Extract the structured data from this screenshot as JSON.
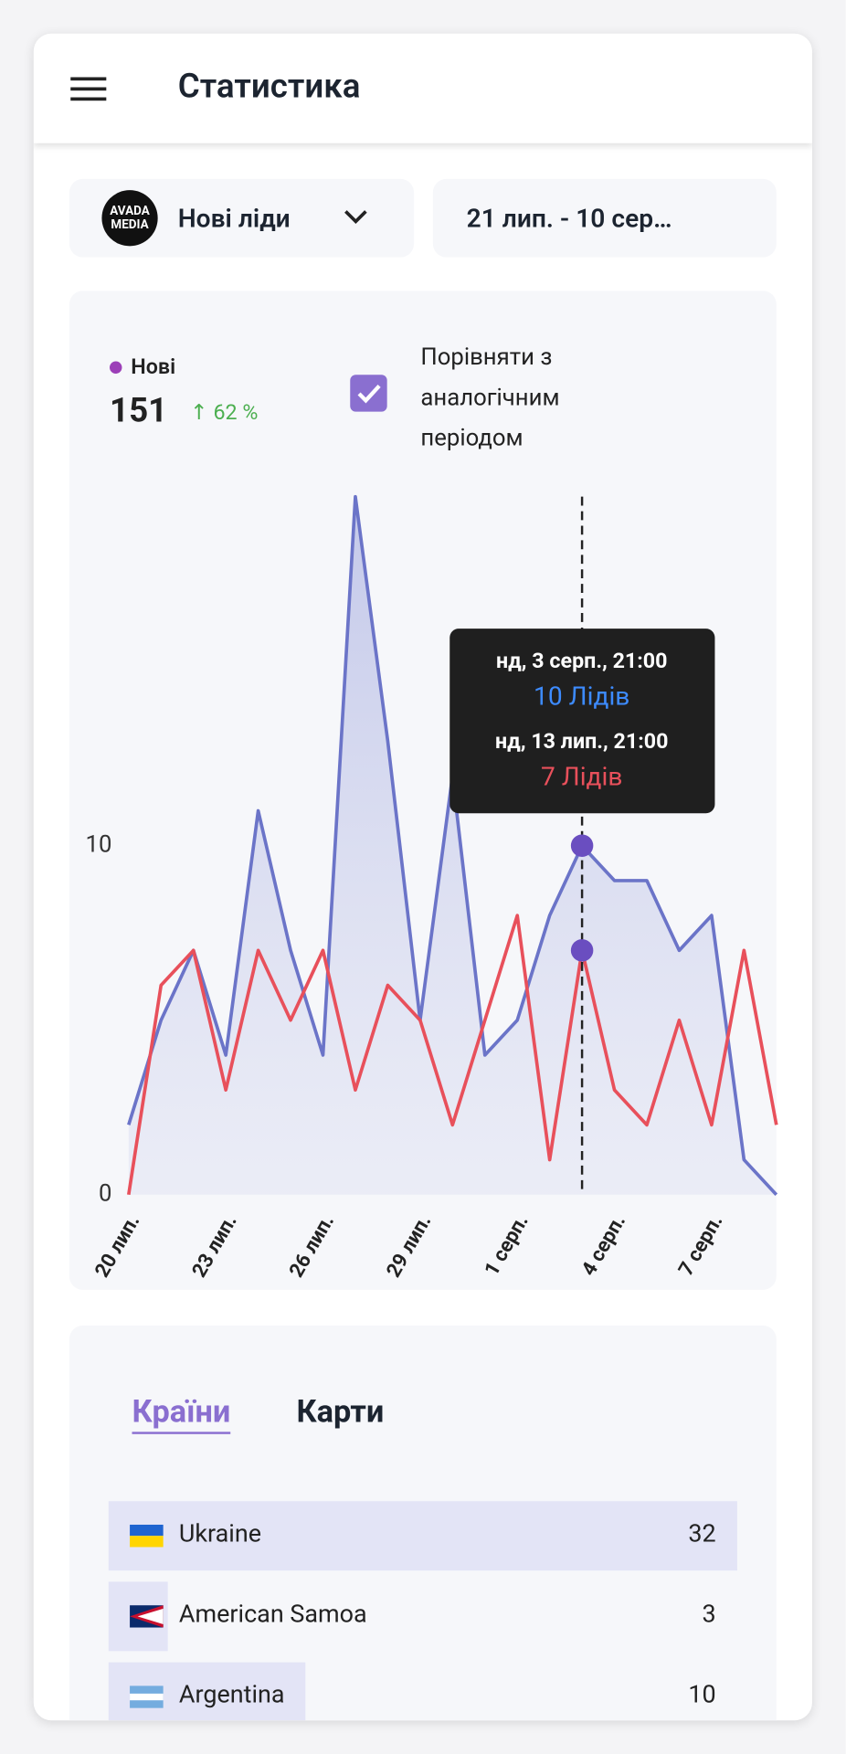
{
  "header": {
    "title": "Статистика"
  },
  "filters": {
    "logo": [
      "AVADA",
      "MEDIA"
    ],
    "source": "Нові ліди",
    "period": "21 лип. - 10 сер…"
  },
  "summary": {
    "total": 151,
    "change": "62 %",
    "compare": "Порівняти з аналогічним періодом"
  },
  "chart_data": {
    "type": "line",
    "categories": [
      "20 лип.",
      null,
      null,
      "23 лип.",
      null,
      null,
      "26 лип.",
      null,
      null,
      "29 лип.",
      null,
      null,
      "1 серп.",
      null,
      null,
      "4 серп.",
      null,
      null,
      "7 серп.",
      null,
      null
    ],
    "series": [
      {
        "name": "Нові",
        "color": "#6b74c8",
        "values": [
          2,
          5,
          7,
          4,
          11,
          7,
          4,
          20,
          13,
          5,
          12,
          4,
          5,
          8,
          10,
          9,
          9,
          7,
          8,
          1,
          0
        ]
      },
      {
        "color": "#e8505b",
        "values": [
          0,
          6,
          7,
          3,
          7,
          5,
          7,
          3,
          6,
          5,
          2,
          5,
          8,
          1,
          7,
          3,
          2,
          5,
          2,
          7,
          2
        ]
      }
    ],
    "ylim": [
      0,
      20
    ],
    "yticks": [
      0,
      10
    ],
    "tooltip": {
      "date1": "нд, 3 серп., 21:00",
      "label1": "10 Лідів",
      "date2": "нд, 13 лип., 21:00",
      "label2": "7 Лідів"
    }
  },
  "tabs": [
    "Країни",
    "Карти"
  ],
  "countries": [
    {
      "name": "Ukraine",
      "value": 32
    },
    {
      "name": "American Samoa",
      "value": 3
    },
    {
      "name": "Argentina",
      "value": 10
    }
  ]
}
